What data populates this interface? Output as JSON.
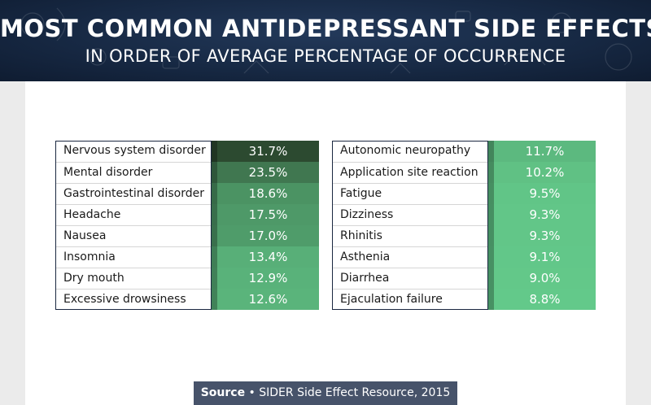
{
  "header": {
    "title": "MOST COMMON ANTIDEPRESSANT SIDE EFFECTS",
    "subtitle": "IN ORDER OF AVERAGE PERCENTAGE OF OCCURRENCE"
  },
  "source": {
    "label": "Source",
    "separator": "•",
    "text": "SIDER Side Effect Resource, 2015"
  },
  "colors": {
    "header_bg": "#172944",
    "darkest_value": "#2c4a30",
    "lightest_value": "#63c98a",
    "source_bg": "#47536a"
  },
  "chart_data": {
    "type": "table",
    "title": "MOST COMMON ANTIDEPRESSANT SIDE EFFECTS",
    "subtitle": "IN ORDER OF AVERAGE PERCENTAGE OF OCCURRENCE",
    "unit": "%",
    "columns": [
      {
        "rows": [
          {
            "label": "Nervous system disorder",
            "value": 31.7,
            "display": "31.7%"
          },
          {
            "label": "Mental disorder",
            "value": 23.5,
            "display": "23.5%"
          },
          {
            "label": "Gastrointestinal disorder",
            "value": 18.6,
            "display": "18.6%"
          },
          {
            "label": "Headache",
            "value": 17.5,
            "display": "17.5%"
          },
          {
            "label": "Nausea",
            "value": 17.0,
            "display": "17.0%"
          },
          {
            "label": "Insomnia",
            "value": 13.4,
            "display": "13.4%"
          },
          {
            "label": "Dry mouth",
            "value": 12.9,
            "display": "12.9%"
          },
          {
            "label": "Excessive drowsiness",
            "value": 12.6,
            "display": "12.6%"
          }
        ]
      },
      {
        "rows": [
          {
            "label": "Autonomic neuropathy",
            "value": 11.7,
            "display": "11.7%"
          },
          {
            "label": "Application site reaction",
            "value": 10.2,
            "display": "10.2%"
          },
          {
            "label": "Fatigue",
            "value": 9.5,
            "display": "9.5%"
          },
          {
            "label": "Dizziness",
            "value": 9.3,
            "display": "9.3%"
          },
          {
            "label": "Rhinitis",
            "value": 9.3,
            "display": "9.3%"
          },
          {
            "label": "Asthenia",
            "value": 9.1,
            "display": "9.1%"
          },
          {
            "label": "Diarrhea",
            "value": 9.0,
            "display": "9.0%"
          },
          {
            "label": "Ejaculation failure",
            "value": 8.8,
            "display": "8.8%"
          }
        ]
      }
    ]
  }
}
